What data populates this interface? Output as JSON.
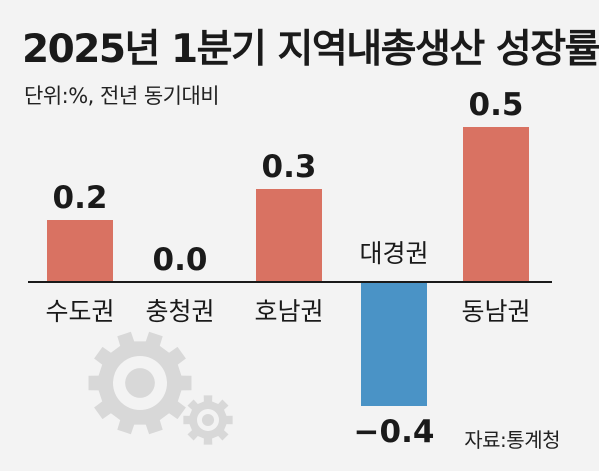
{
  "title": "2025년 1분기 지역내총생산 성장률",
  "subtitle": "단위:%, 전년 동기대비",
  "source": "자료:통계청",
  "colors": {
    "positive": "#d97262",
    "negative": "#4a93c6",
    "gear": "#d8d8d8",
    "background": "#f3f3f3",
    "text": "#1a1a1a"
  },
  "icons": [
    "gear-icon",
    "gear-icon"
  ],
  "chart_data": {
    "type": "bar",
    "title": "2025년 1분기 지역내총생산 성장률",
    "categories": [
      "수도권",
      "충청권",
      "호남권",
      "대경권",
      "동남권"
    ],
    "values": [
      0.2,
      0.0,
      0.3,
      -0.4,
      0.5
    ],
    "value_labels": [
      "0.2",
      "0.0",
      "0.3",
      "−0.4",
      "0.5"
    ],
    "xlabel": "",
    "ylabel": "",
    "ylim": [
      -0.45,
      0.55
    ],
    "grid": false,
    "legend": "none"
  }
}
